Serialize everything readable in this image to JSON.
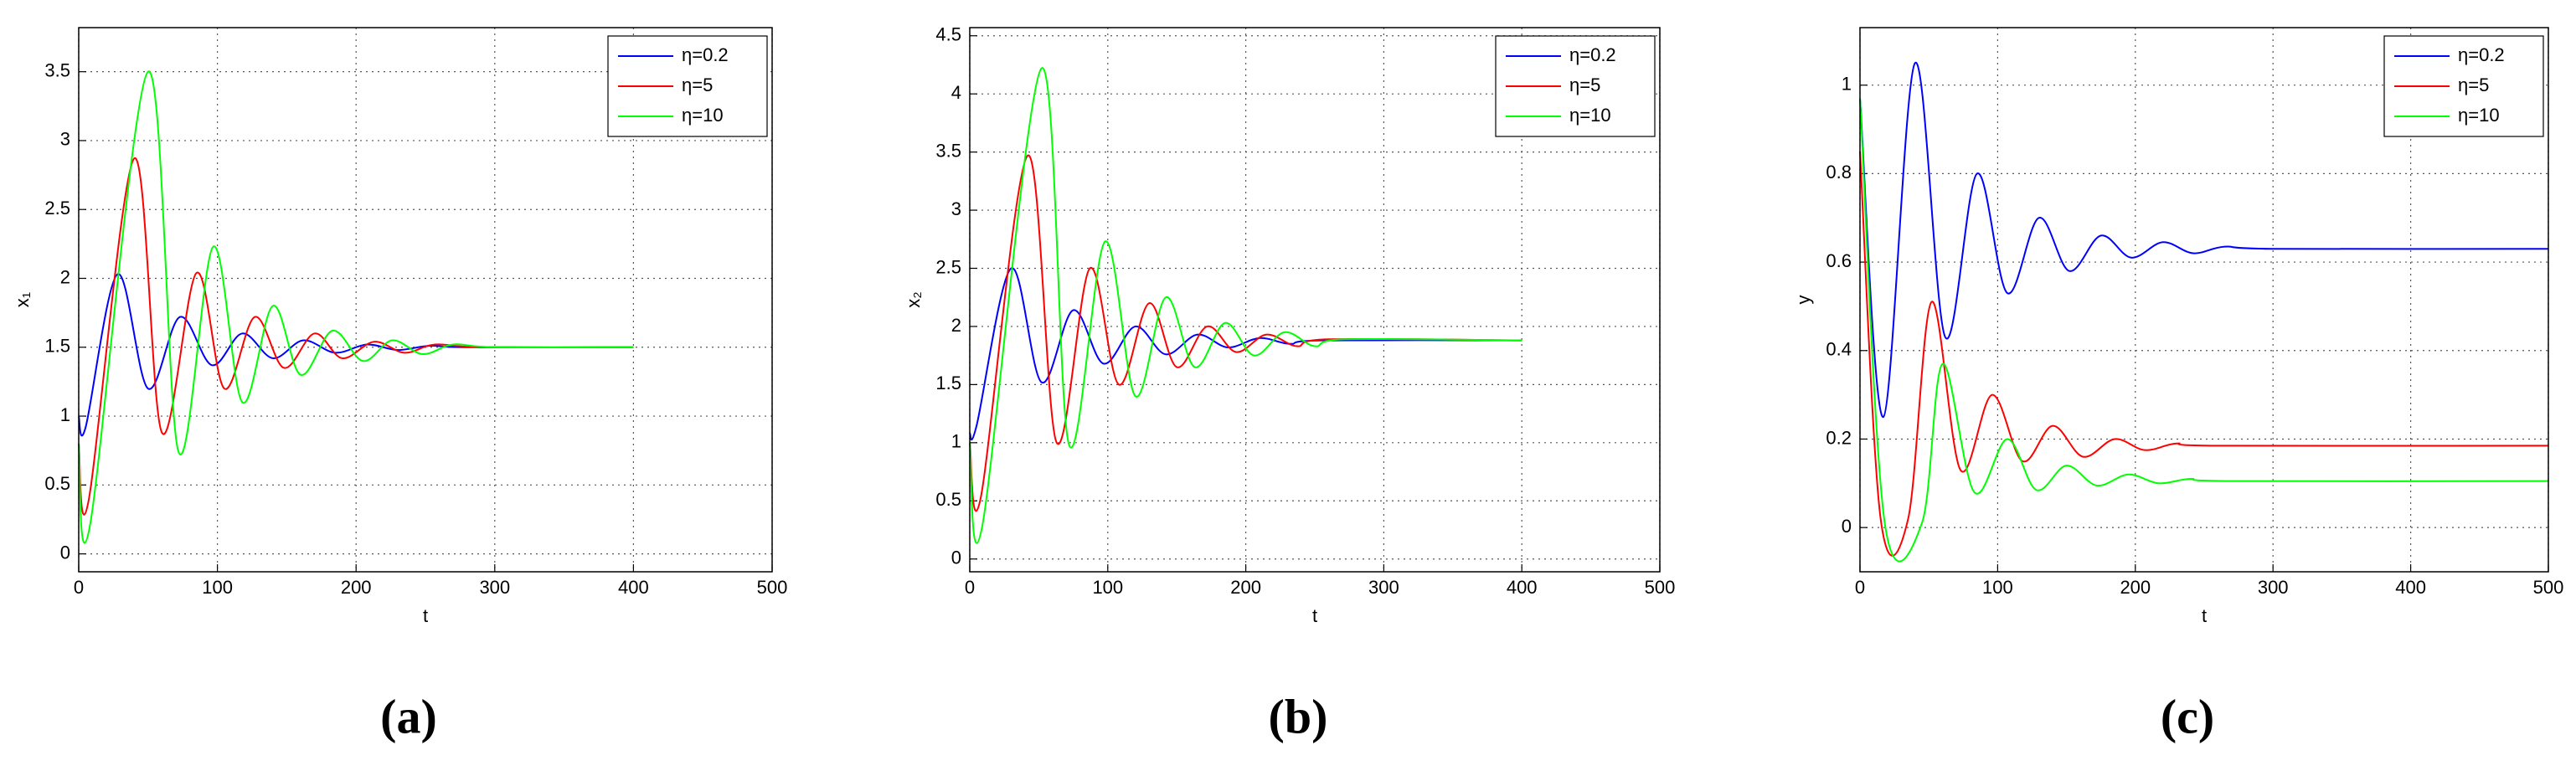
{
  "chart_data": [
    {
      "type": "line",
      "panel_label": "(a)",
      "xlabel": "t",
      "ylabel": "x₁",
      "xlim": [
        0,
        500
      ],
      "xticks": [
        0,
        100,
        200,
        300,
        400,
        500
      ],
      "ylim": [
        -0.13,
        3.82
      ],
      "yticks": [
        0,
        0.5,
        1,
        1.5,
        2,
        2.5,
        3,
        3.5
      ],
      "grid": true,
      "legend": "northeast",
      "series": [
        {
          "name": "η=0.2",
          "color": "#0000ff",
          "x": [
            0,
            5,
            28,
            50,
            73,
            96,
            118,
            140,
            162,
            185,
            208,
            230,
            253,
            280,
            400
          ],
          "values": [
            1.0,
            0.92,
            2.03,
            1.2,
            1.72,
            1.37,
            1.6,
            1.42,
            1.55,
            1.46,
            1.52,
            1.48,
            1.51,
            1.5,
            1.5
          ]
        },
        {
          "name": "η=5",
          "color": "#ff0000",
          "x": [
            0,
            7,
            40,
            60,
            85,
            105,
            127,
            148,
            170,
            190,
            213,
            235,
            257,
            290,
            400
          ],
          "values": [
            0.8,
            0.38,
            2.87,
            0.88,
            2.04,
            1.2,
            1.72,
            1.35,
            1.6,
            1.42,
            1.54,
            1.46,
            1.52,
            1.5,
            1.5
          ]
        },
        {
          "name": "η=10",
          "color": "#00ff00",
          "x": [
            0,
            8,
            50,
            72,
            97,
            118,
            140,
            160,
            183,
            205,
            226,
            248,
            270,
            300,
            400
          ],
          "values": [
            0.8,
            0.2,
            3.5,
            0.74,
            2.23,
            1.1,
            1.8,
            1.3,
            1.62,
            1.4,
            1.55,
            1.45,
            1.52,
            1.5,
            1.5
          ]
        }
      ]
    },
    {
      "type": "line",
      "panel_label": "(b)",
      "xlabel": "t",
      "ylabel": "x₂",
      "xlim": [
        0,
        500
      ],
      "xticks": [
        0,
        100,
        200,
        300,
        400,
        500
      ],
      "ylim": [
        -0.11,
        4.57
      ],
      "yticks": [
        0,
        0.5,
        1,
        1.5,
        2,
        2.5,
        3,
        3.5,
        4,
        4.5
      ],
      "grid": true,
      "legend": "northeast",
      "series": [
        {
          "name": "η=0.2",
          "color": "#0000ff",
          "x": [
            0,
            5,
            30,
            52,
            75,
            97,
            120,
            142,
            165,
            187,
            210,
            232,
            255,
            400
          ],
          "values": [
            1.08,
            1.15,
            2.5,
            1.52,
            2.14,
            1.68,
            2.0,
            1.76,
            1.93,
            1.82,
            1.9,
            1.85,
            1.88,
            1.88
          ]
        },
        {
          "name": "η=5",
          "color": "#ff0000",
          "x": [
            0,
            8,
            42,
            63,
            87,
            108,
            130,
            150,
            172,
            193,
            215,
            237,
            260,
            400
          ],
          "values": [
            1.0,
            0.53,
            3.47,
            1.0,
            2.5,
            1.5,
            2.2,
            1.65,
            2.0,
            1.78,
            1.93,
            1.83,
            1.89,
            1.88
          ]
        },
        {
          "name": "η=10",
          "color": "#00ff00",
          "x": [
            0,
            9,
            52,
            72,
            98,
            120,
            142,
            163,
            185,
            206,
            228,
            250,
            272,
            400
          ],
          "values": [
            1.0,
            0.28,
            4.22,
            0.98,
            2.73,
            1.4,
            2.25,
            1.65,
            2.03,
            1.75,
            1.95,
            1.83,
            1.89,
            1.88
          ]
        }
      ]
    },
    {
      "type": "line",
      "panel_label": "(c)",
      "xlabel": "t",
      "ylabel": "y",
      "xlim": [
        0,
        500
      ],
      "xticks": [
        0,
        100,
        200,
        300,
        400,
        500
      ],
      "ylim": [
        -0.1,
        1.13
      ],
      "yticks": [
        0,
        0.2,
        0.4,
        0.6,
        0.8,
        1
      ],
      "grid": true,
      "legend": "northeast",
      "series": [
        {
          "name": "η=0.2",
          "color": "#0000ff",
          "x": [
            0,
            17,
            40,
            62,
            85,
            107,
            130,
            152,
            175,
            197,
            220,
            242,
            265,
            300,
            500
          ],
          "values": [
            0.97,
            0.25,
            1.05,
            0.43,
            0.8,
            0.53,
            0.7,
            0.58,
            0.66,
            0.61,
            0.645,
            0.62,
            0.635,
            0.63,
            0.63
          ]
        },
        {
          "name": "η=5",
          "color": "#ff0000",
          "x": [
            0,
            15,
            35,
            52,
            73,
            96,
            118,
            140,
            162,
            185,
            207,
            230,
            260,
            500
          ],
          "values": [
            0.85,
            0.02,
            0.02,
            0.51,
            0.13,
            0.3,
            0.15,
            0.23,
            0.16,
            0.2,
            0.175,
            0.19,
            0.185,
            0.185
          ]
        },
        {
          "name": "η=10",
          "color": "#00ff00",
          "x": [
            0,
            18,
            45,
            60,
            83,
            107,
            128,
            150,
            172,
            195,
            217,
            240,
            270,
            500
          ],
          "values": [
            0.97,
            0.01,
            0.01,
            0.37,
            0.08,
            0.2,
            0.085,
            0.14,
            0.095,
            0.12,
            0.1,
            0.11,
            0.105,
            0.105
          ]
        }
      ]
    }
  ]
}
